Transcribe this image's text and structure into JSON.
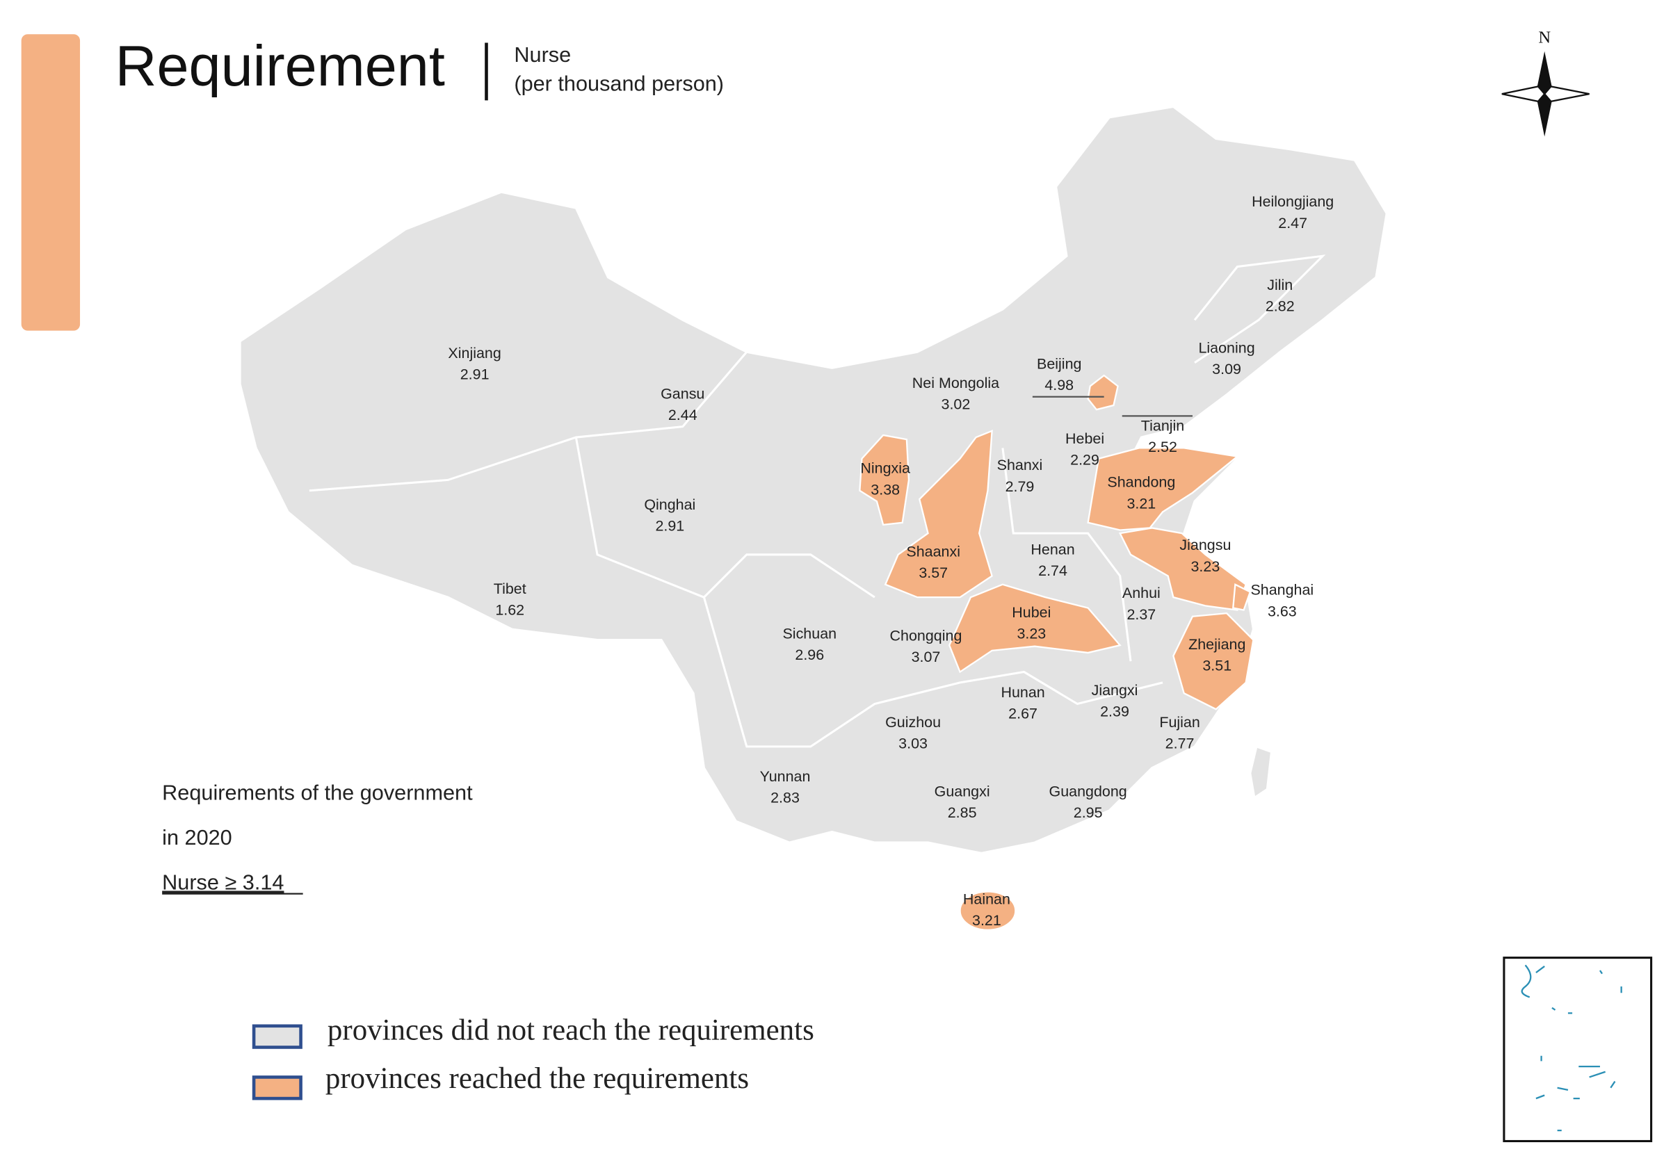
{
  "header": {
    "title": "Requirement",
    "subtitle": [
      "Nurse",
      "(per thousand person)"
    ]
  },
  "compass": "N",
  "provinces": [
    {
      "name": "Heilongjiang",
      "value": 2.47
    },
    {
      "name": "Jilin",
      "value": 2.82
    },
    {
      "name": "Liaoning",
      "value": 3.09
    },
    {
      "name": "Beijing",
      "value": 4.98
    },
    {
      "name": "Tianjin",
      "value": 2.52
    },
    {
      "name": "Hebei",
      "value": 2.29
    },
    {
      "name": "Nei Mongolia",
      "value": 3.02
    },
    {
      "name": "Xinjiang",
      "value": 2.91
    },
    {
      "name": "Gansu",
      "value": 2.44
    },
    {
      "name": "Ningxia",
      "value": 3.38
    },
    {
      "name": "Shanxi",
      "value": 2.79
    },
    {
      "name": "Shandong",
      "value": 3.21
    },
    {
      "name": "Qinghai",
      "value": 2.91
    },
    {
      "name": "Shaanxi",
      "value": 3.57
    },
    {
      "name": "Henan",
      "value": 2.74
    },
    {
      "name": "Jiangsu",
      "value": 3.23
    },
    {
      "name": "Shanghai",
      "value": 3.63
    },
    {
      "name": "Tibet",
      "value": 1.62
    },
    {
      "name": "Anhui",
      "value": 2.37
    },
    {
      "name": "Hubei",
      "value": 3.23
    },
    {
      "name": "Sichuan",
      "value": 2.96
    },
    {
      "name": "Chongqing",
      "value": 3.07
    },
    {
      "name": "Zhejiang",
      "value": 3.51
    },
    {
      "name": "Hunan",
      "value": 2.67
    },
    {
      "name": "Jiangxi",
      "value": 2.39
    },
    {
      "name": "Fujian",
      "value": 2.77
    },
    {
      "name": "Guizhou",
      "value": 3.03
    },
    {
      "name": "Yunnan",
      "value": 2.83
    },
    {
      "name": "Guangxi",
      "value": 2.85
    },
    {
      "name": "Guangdong",
      "value": 2.95
    },
    {
      "name": "Hainan",
      "value": 3.21
    }
  ],
  "requirement": {
    "lines": [
      "Requirements of the government",
      "in 2020"
    ],
    "rule": "Nurse ≥ 3.14"
  },
  "legend": [
    {
      "label": "provinces did not reach the requirements",
      "color": "#e3e3e3"
    },
    {
      "label": "provinces reached the requirements",
      "color": "#f4b183"
    }
  ]
}
